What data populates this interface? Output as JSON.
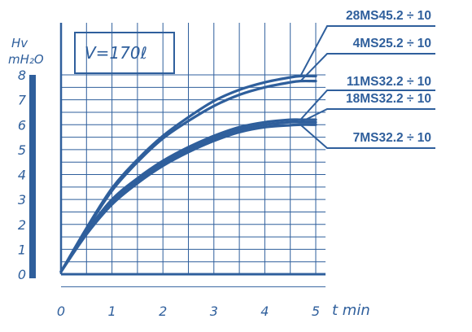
{
  "chart_data": {
    "type": "line",
    "annotation": "V=170ℓ",
    "ylabel_line1": "Hv",
    "ylabel_line2": "mH₂O",
    "xlabel": "t min",
    "xlim": [
      0,
      5
    ],
    "ylim": [
      0,
      8
    ],
    "xticks": [
      "0",
      "1",
      "2",
      "3",
      "4",
      "5"
    ],
    "yticks": [
      "0",
      "1",
      "2",
      "3",
      "4",
      "5",
      "6",
      "7",
      "8"
    ],
    "grid": true,
    "color": "#2f5f9c",
    "series": [
      {
        "name": "28MS45.2 ÷ 10",
        "x": [
          0,
          0.5,
          1,
          1.5,
          2,
          2.5,
          3,
          3.5,
          4,
          4.5,
          4.7,
          5
        ],
        "y": [
          0.1,
          1.85,
          3.45,
          4.6,
          5.55,
          6.3,
          6.95,
          7.4,
          7.7,
          7.9,
          7.95,
          7.95
        ]
      },
      {
        "name": "4MS25.2 ÷ 10",
        "x": [
          0,
          0.5,
          1,
          1.5,
          2,
          2.5,
          3,
          3.5,
          4,
          4.5,
          4.7,
          5
        ],
        "y": [
          0.1,
          1.8,
          3.35,
          4.5,
          5.45,
          6.15,
          6.75,
          7.2,
          7.5,
          7.7,
          7.75,
          7.75
        ]
      },
      {
        "name": "11MS32.2 ÷ 10",
        "x": [
          0,
          0.5,
          1,
          1.5,
          2,
          2.5,
          3,
          3.5,
          4,
          4.5,
          4.7,
          5
        ],
        "y": [
          0.1,
          1.7,
          3.0,
          3.85,
          4.55,
          5.1,
          5.55,
          5.9,
          6.1,
          6.2,
          6.2,
          6.2
        ]
      },
      {
        "name": "18MS32.2 ÷ 10",
        "x": [
          0,
          0.5,
          1,
          1.5,
          2,
          2.5,
          3,
          3.5,
          4,
          4.5,
          4.7,
          5
        ],
        "y": [
          0.1,
          1.65,
          2.9,
          3.75,
          4.45,
          5.0,
          5.45,
          5.8,
          6.0,
          6.1,
          6.1,
          6.1
        ]
      },
      {
        "name": "7MS32.2 ÷ 10",
        "x": [
          0,
          0.5,
          1,
          1.5,
          2,
          2.5,
          3,
          3.5,
          4,
          4.5,
          4.7,
          5
        ],
        "y": [
          0.1,
          1.6,
          2.8,
          3.65,
          4.35,
          4.9,
          5.35,
          5.7,
          5.9,
          5.98,
          6.0,
          6.0
        ]
      }
    ]
  }
}
